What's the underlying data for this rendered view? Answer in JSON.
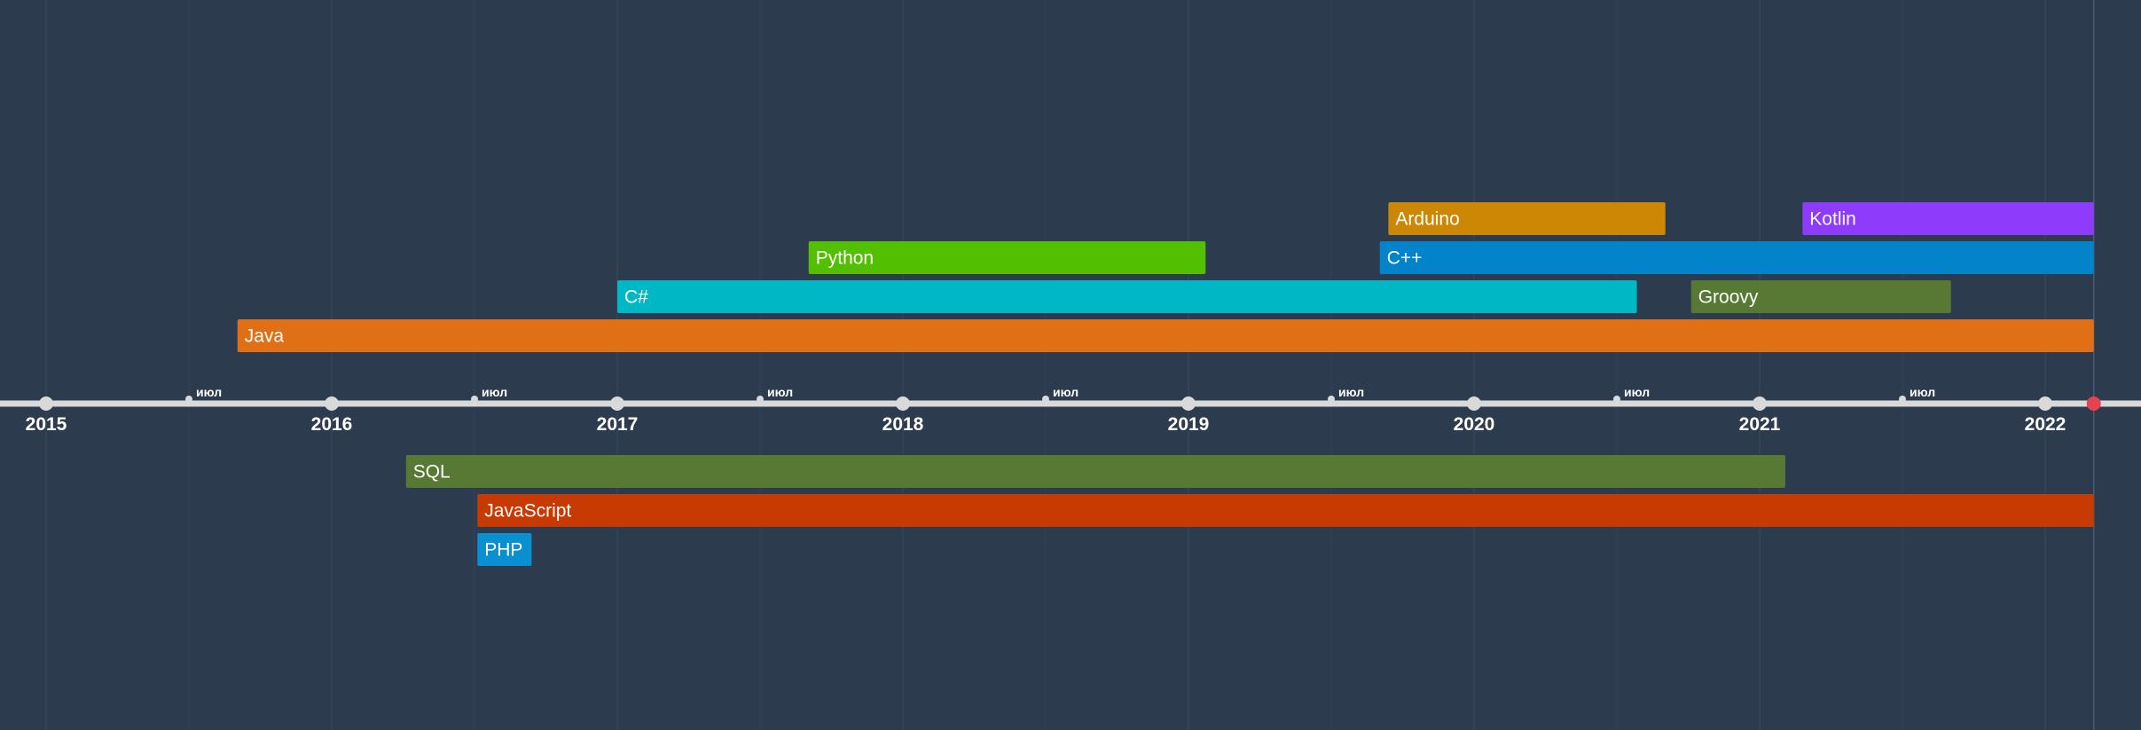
{
  "colors": {
    "background": "#2d3b4f",
    "axis": "#d9d9d9",
    "now_marker": "#e8414f"
  },
  "chart_data": {
    "type": "timeline",
    "x_axis": {
      "unit": "year",
      "range": [
        2014.95,
        2022.35
      ],
      "major_ticks": [
        2015,
        2016,
        2017,
        2018,
        2019,
        2020,
        2021,
        2022
      ],
      "major_labels": [
        "2015",
        "2016",
        "2017",
        "2018",
        "2019",
        "2020",
        "2021",
        "2022"
      ],
      "minor_ticks": [
        2015.5,
        2016.5,
        2017.5,
        2018.5,
        2019.5,
        2020.5,
        2021.5
      ],
      "minor_label": "июл",
      "now": 2022.17
    },
    "series": [
      {
        "name": "Java",
        "start": 2015.67,
        "end": 2022.17,
        "side": "above",
        "row": 0,
        "color": "#e07015"
      },
      {
        "name": "C#",
        "start": 2017.0,
        "end": 2020.57,
        "side": "above",
        "row": 1,
        "color": "#00b7c6"
      },
      {
        "name": "Groovy",
        "start": 2020.76,
        "end": 2021.67,
        "side": "above",
        "row": 1,
        "color": "#577934"
      },
      {
        "name": "Python",
        "start": 2017.67,
        "end": 2019.06,
        "side": "above",
        "row": 2,
        "color": "#52bf00"
      },
      {
        "name": "C++",
        "start": 2019.67,
        "end": 2022.17,
        "side": "above",
        "row": 2,
        "color": "#0383c9"
      },
      {
        "name": "Arduino",
        "start": 2019.7,
        "end": 2020.67,
        "side": "above",
        "row": 3,
        "color": "#cc8804"
      },
      {
        "name": "Kotlin",
        "start": 2021.15,
        "end": 2022.17,
        "side": "above",
        "row": 3,
        "color": "#8e3bfc"
      },
      {
        "name": "SQL",
        "start": 2016.26,
        "end": 2021.09,
        "side": "below",
        "row": 0,
        "color": "#577934"
      },
      {
        "name": "JavaScript",
        "start": 2016.51,
        "end": 2022.17,
        "side": "below",
        "row": 1,
        "color": "#c73a01"
      },
      {
        "name": "PHP",
        "start": 2016.51,
        "end": 2016.7,
        "side": "below",
        "row": 2,
        "color": "#0a8fd1"
      }
    ]
  }
}
